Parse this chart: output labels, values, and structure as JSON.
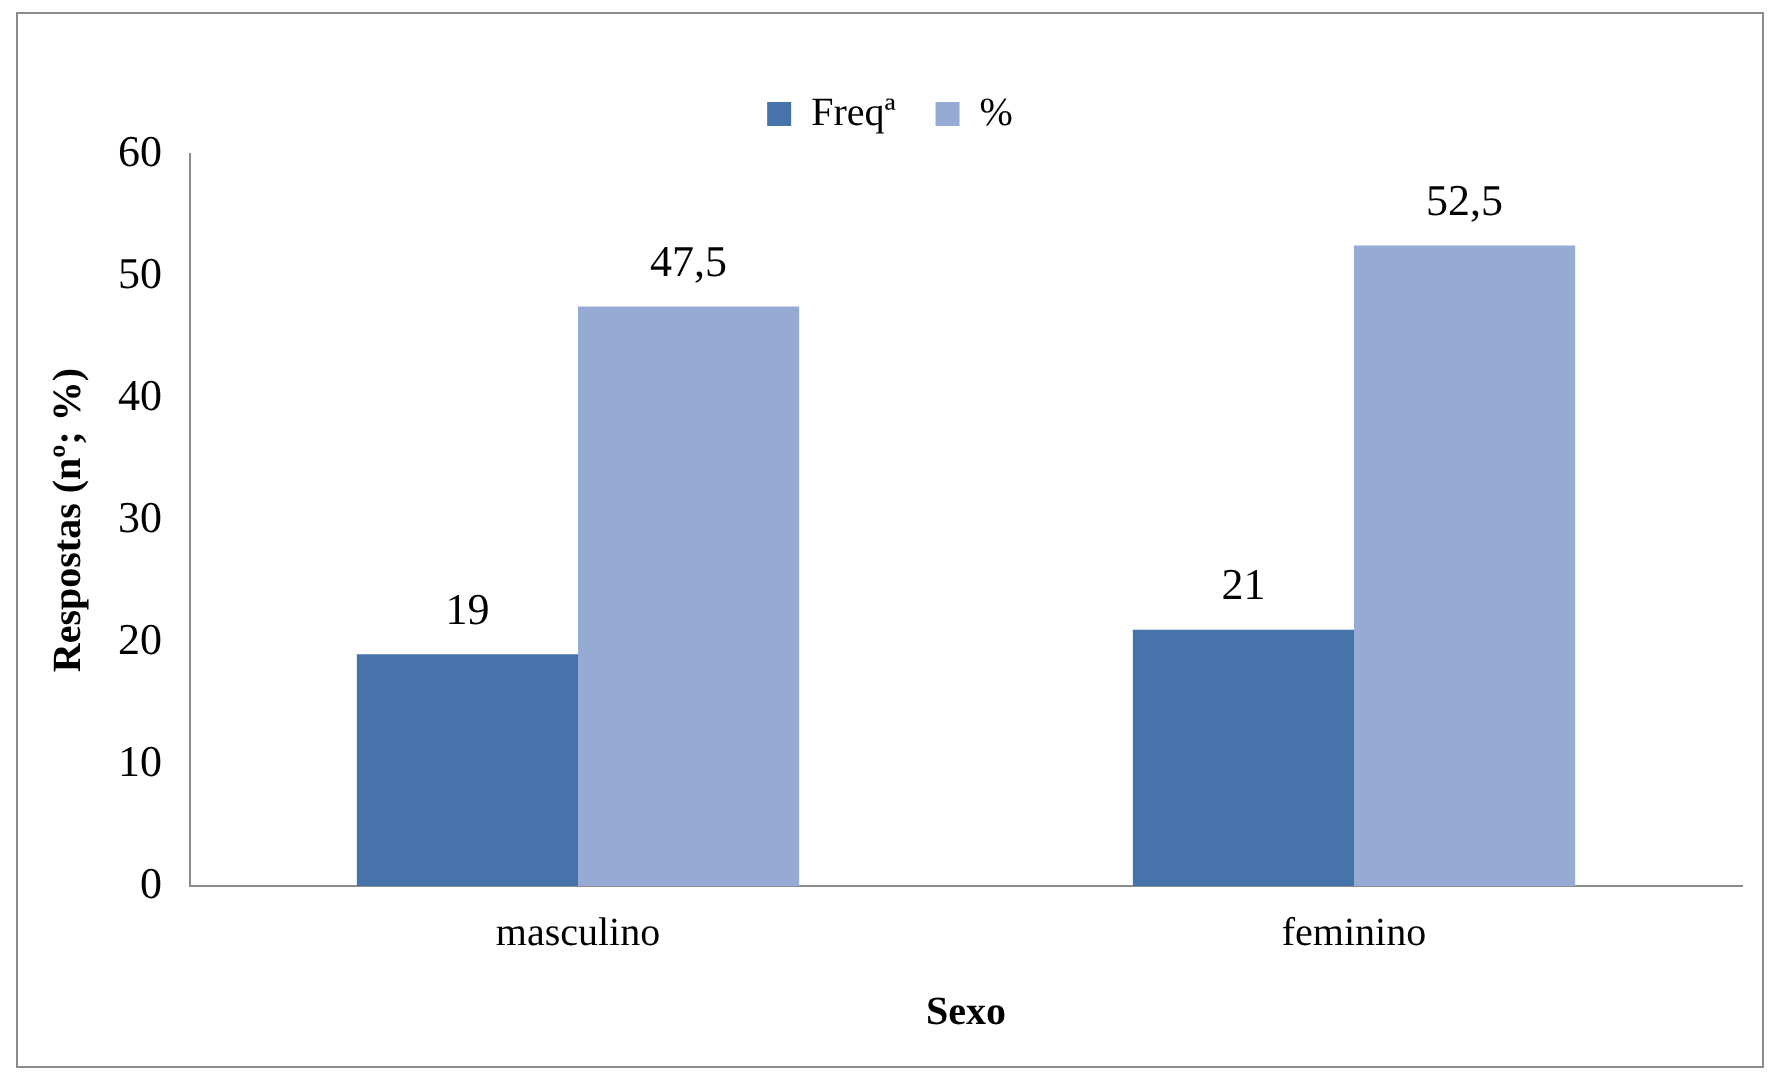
{
  "chart_data": {
    "type": "bar",
    "xlabel": "Sexo",
    "ylabel": "Respostas (nº; %)",
    "categories": [
      "masculino",
      "feminino"
    ],
    "series": [
      {
        "name": "Freqª",
        "color": "#4674aa",
        "values": [
          19,
          21
        ],
        "value_labels": [
          "19",
          "21"
        ]
      },
      {
        "name": "%",
        "color": "#95abd3",
        "values": [
          47.5,
          52.5
        ],
        "value_labels": [
          "47,5",
          "52,5"
        ]
      }
    ],
    "ylim": [
      0,
      60
    ],
    "yticks": [
      0,
      10,
      20,
      30,
      40,
      50,
      60
    ],
    "grid": false,
    "legend": "top"
  }
}
